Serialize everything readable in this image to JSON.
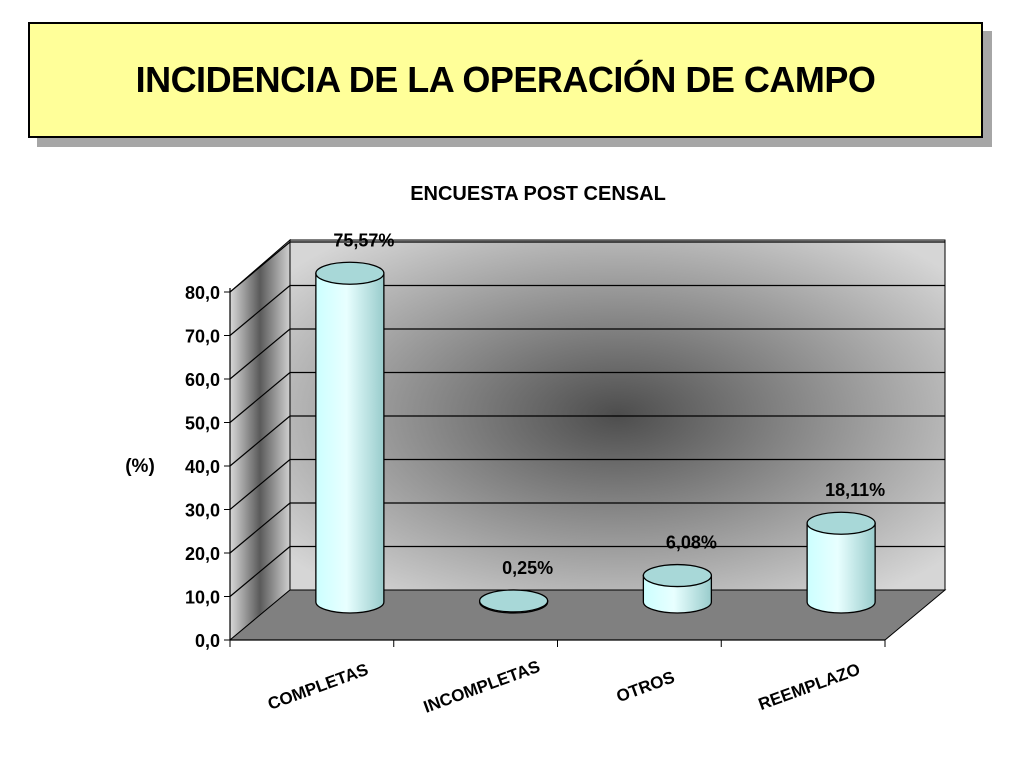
{
  "slide": {
    "title": "INCIDENCIA DE LA OPERACIÓN DE CAMPO"
  },
  "chart_data": {
    "type": "bar",
    "title": "ENCUESTA POST CENSAL",
    "ylabel": "(%)",
    "xlabel": "",
    "ylim": [
      0,
      80
    ],
    "yticks": [
      "0,0",
      "10,0",
      "20,0",
      "30,0",
      "40,0",
      "50,0",
      "60,0",
      "70,0",
      "80,0"
    ],
    "categories": [
      "COMPLETAS",
      "INCOMPLETAS",
      "OTROS",
      "REEMPLAZO"
    ],
    "values": [
      75.57,
      0.25,
      6.08,
      18.11
    ],
    "data_labels": [
      "75,57%",
      "0,25%",
      "6,08%",
      "18,11%"
    ],
    "grid": true,
    "style": "3d-cylinder",
    "colors": {
      "bar": "#ccffff",
      "bar_edge": "#000000",
      "wall": "#c0c0c0",
      "floor": "#808080"
    }
  }
}
